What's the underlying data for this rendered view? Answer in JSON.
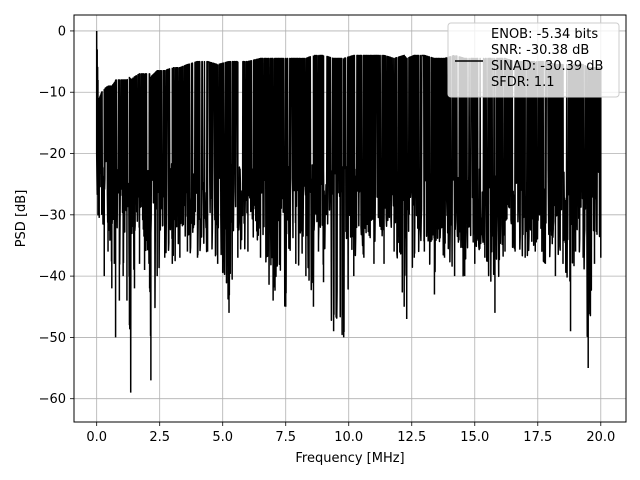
{
  "chart_data": {
    "type": "line",
    "title": "",
    "xlabel": "Frequency [MHz]",
    "ylabel": "PSD [dB]",
    "xlim": [
      -0.9,
      21.0
    ],
    "ylim": [
      -63.8,
      2.6
    ],
    "xticks": [
      0.0,
      2.5,
      5.0,
      7.5,
      10.0,
      12.5,
      15.0,
      17.5,
      20.0
    ],
    "xtick_labels": [
      "0.0",
      "2.5",
      "5.0",
      "7.5",
      "10.0",
      "12.5",
      "15.0",
      "17.5",
      "20.0"
    ],
    "yticks": [
      0,
      -10,
      -20,
      -30,
      -40,
      -50,
      -60
    ],
    "ytick_labels": [
      "0",
      "−10",
      "−20",
      "−30",
      "−40",
      "−50",
      "−60"
    ],
    "grid": true,
    "legend_position": "upper-right",
    "line_color": "#000000",
    "series": [
      {
        "x": [
          0.0,
          0.02,
          0.05,
          0.1,
          0.2,
          0.3,
          0.45,
          0.6,
          0.7,
          0.75,
          0.9,
          1.05,
          1.2,
          1.3,
          1.35,
          1.5,
          1.7,
          1.9,
          2.1,
          2.15,
          2.4,
          2.7,
          3.0,
          3.3,
          3.6,
          4.0,
          4.4,
          4.8,
          5.25,
          5.6,
          6.0,
          6.5,
          7.0,
          7.5,
          7.9,
          8.3,
          8.6,
          8.8,
          9.0,
          9.4,
          9.8,
          10.2,
          10.6,
          11.0,
          11.4,
          11.8,
          12.2,
          12.3,
          12.6,
          13.0,
          13.4,
          13.8,
          14.2,
          14.6,
          15.0,
          15.4,
          15.8,
          16.2,
          16.6,
          17.0,
          17.4,
          17.8,
          18.2,
          18.5,
          18.8,
          19.0,
          19.3,
          19.5,
          19.75,
          20.0
        ],
        "y_max": [
          0.0,
          -3.0,
          -8.0,
          -11.0,
          -10.0,
          -9.5,
          -9.0,
          -9.0,
          -8.5,
          -8.0,
          -8.0,
          -8.0,
          -8.0,
          -7.5,
          -8.0,
          -7.5,
          -7.0,
          -7.0,
          -7.0,
          -7.5,
          -6.5,
          -6.5,
          -6.0,
          -6.0,
          -5.5,
          -5.0,
          -5.0,
          -5.5,
          -5.0,
          -5.0,
          -5.0,
          -4.5,
          -4.5,
          -4.5,
          -4.5,
          -4.5,
          -4.0,
          -4.0,
          -4.0,
          -4.5,
          -4.5,
          -4.0,
          -4.0,
          -4.0,
          -4.0,
          -4.5,
          -4.0,
          -4.5,
          -4.0,
          -4.0,
          -4.5,
          -4.5,
          -4.0,
          -4.5,
          -4.5,
          -4.5,
          -4.5,
          -4.5,
          -5.0,
          -5.0,
          -5.0,
          -5.0,
          -5.5,
          -5.5,
          -5.5,
          -5.5,
          -5.5,
          -6.0,
          -6.0,
          -6.0
        ],
        "y_min": [
          -20.0,
          -26.0,
          -30.0,
          -30.5,
          -30.0,
          -40.0,
          -36.0,
          -42.0,
          -38.0,
          -50.0,
          -44.0,
          -40.0,
          -44.0,
          -48.0,
          -59.0,
          -42.0,
          -38.0,
          -39.0,
          -42.0,
          -57.0,
          -40.0,
          -37.0,
          -38.0,
          -37.0,
          -36.0,
          -37.0,
          -36.0,
          -38.0,
          -46.0,
          -37.0,
          -36.0,
          -37.0,
          -44.0,
          -45.0,
          -38.0,
          -40.0,
          -45.0,
          -36.0,
          -41.0,
          -49.0,
          -50.0,
          -40.0,
          -37.0,
          -38.0,
          -38.0,
          -36.0,
          -45.0,
          -47.0,
          -37.0,
          -36.0,
          -43.0,
          -37.0,
          -40.0,
          -40.0,
          -38.0,
          -37.0,
          -46.0,
          -36.0,
          -36.0,
          -37.0,
          -36.0,
          -38.0,
          -40.0,
          -38.0,
          -49.0,
          -36.0,
          -37.0,
          -55.0,
          -38.0,
          -37.0
        ]
      }
    ],
    "legend": {
      "lines": [
        "ENOB: -5.34 bits",
        "SNR: -30.38 dB",
        "SINAD: -30.39 dB",
        "SFDR: 1.1"
      ]
    }
  }
}
